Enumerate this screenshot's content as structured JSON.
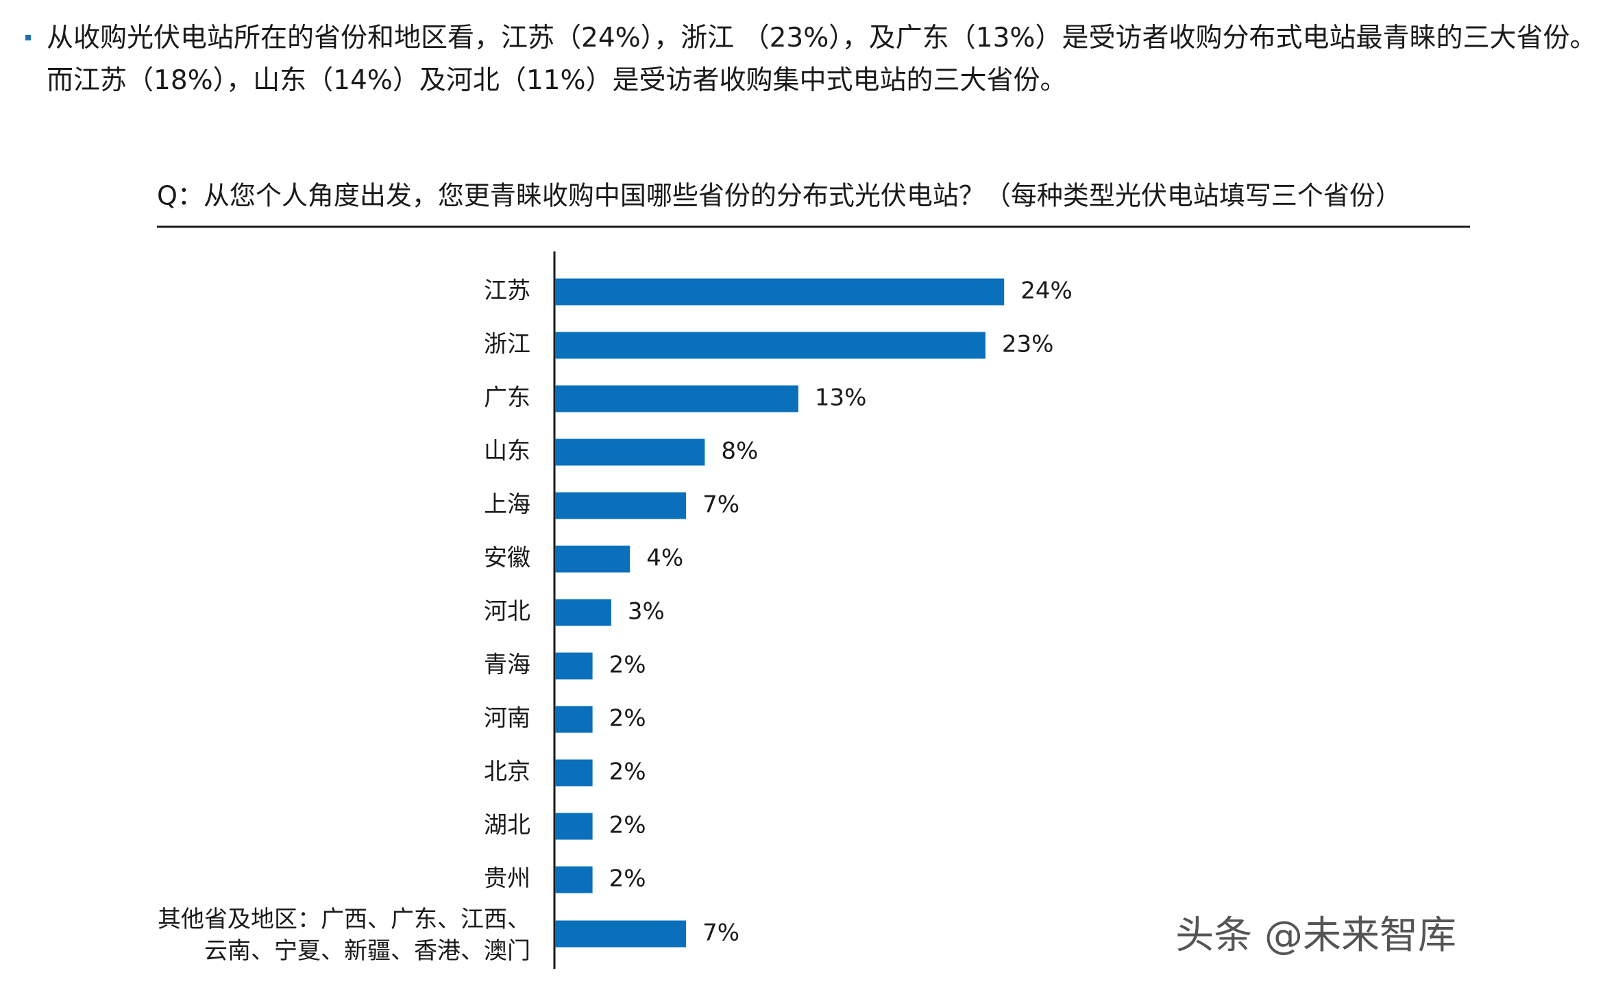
{
  "bullet_text": [
    "从收购光伏电站所在的省份和地区看，江苏（24%），浙江 （23%），及广东（13%）是受访者收购分布式电站最青睐的三大省份。",
    "而江苏（18%），山东（14%）及河北（11%）是受访者收购集中式电站的三大省份。"
  ],
  "chart_data": {
    "type": "bar",
    "orientation": "horizontal",
    "title": "Q：从您个人角度出发，您更青睐收购中国哪些省份的分布式光伏电站？（每种类型光伏电站填写三个省份）",
    "categories": [
      "江苏",
      "浙江",
      "广东",
      "山东",
      "上海",
      "安徽",
      "河北",
      "青海",
      "河南",
      "北京",
      "湖北",
      "贵州",
      "其他省及地区：广西、广东、江西、云南、宁夏、新疆、香港、澳门"
    ],
    "values": [
      24,
      23,
      13,
      8,
      7,
      4,
      3,
      2,
      2,
      2,
      2,
      2,
      7
    ],
    "value_labels": [
      "24%",
      "23%",
      "13%",
      "8%",
      "7%",
      "4%",
      "3%",
      "2%",
      "2%",
      "2%",
      "2%",
      "2%",
      "7%"
    ],
    "color": "#0a70bb"
  },
  "watermark": "头条 @未来智库"
}
